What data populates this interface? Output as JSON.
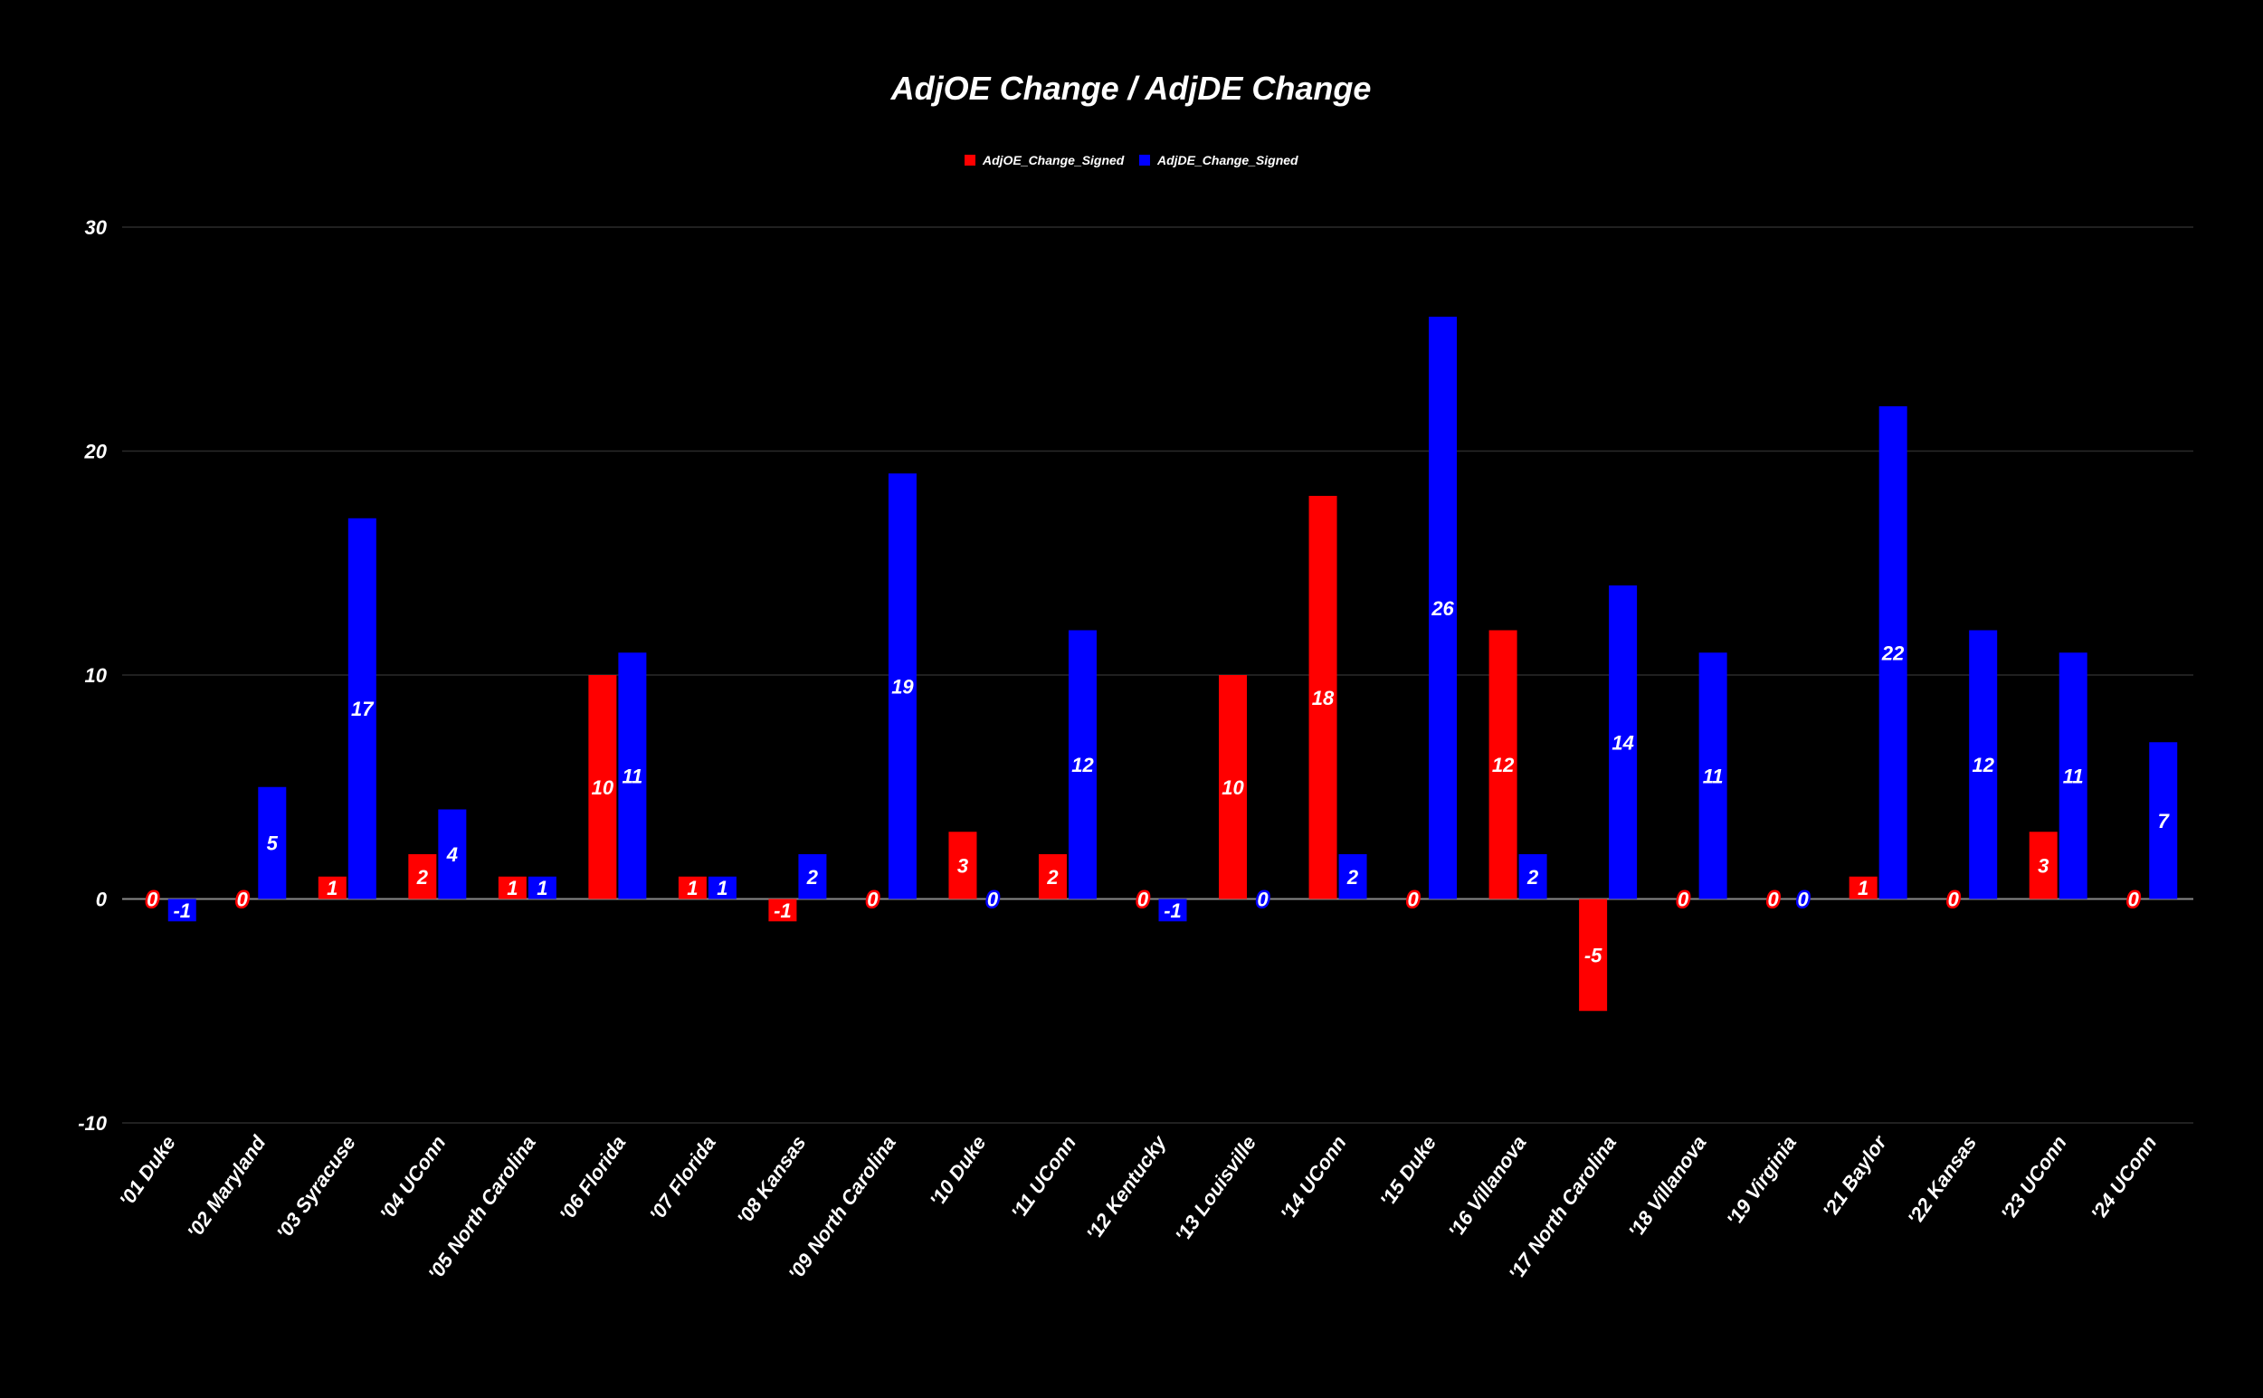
{
  "chart_data": {
    "type": "bar",
    "title": "AdjOE Change / AdjDE Change",
    "xlabel": "",
    "ylabel": "",
    "ylim": [
      -10,
      30
    ],
    "yticks": [
      -10,
      0,
      10,
      20,
      30
    ],
    "grid": true,
    "legend_position": "top-center",
    "categories": [
      "'01 Duke",
      "'02 Maryland",
      "'03 Syracuse",
      "'04 UConn",
      "'05 North Carolina",
      "'06 Florida",
      "'07 Florida",
      "'08 Kansas",
      "'09 North Carolina",
      "'10 Duke",
      "'11 UConn",
      "'12 Kentucky",
      "'13 Louisville",
      "'14 UConn",
      "'15 Duke",
      "'16 Villanova",
      "'17 North Carolina",
      "'18 Villanova",
      "'19 Virginia",
      "'21 Baylor",
      "'22 Kansas",
      "'23 UConn",
      "'24 UConn"
    ],
    "series": [
      {
        "name": "AdjOE_Change_Signed",
        "color": "#ff0000",
        "values": [
          0,
          0,
          1,
          2,
          1,
          10,
          1,
          -1,
          0,
          3,
          2,
          0,
          10,
          18,
          0,
          12,
          -5,
          0,
          0,
          1,
          0,
          3,
          0
        ]
      },
      {
        "name": "AdjDE_Change_Signed",
        "color": "#0000ff",
        "values": [
          -1,
          5,
          17,
          4,
          1,
          11,
          1,
          2,
          19,
          0,
          12,
          -1,
          0,
          2,
          26,
          2,
          14,
          11,
          0,
          22,
          12,
          11,
          7
        ]
      }
    ]
  }
}
